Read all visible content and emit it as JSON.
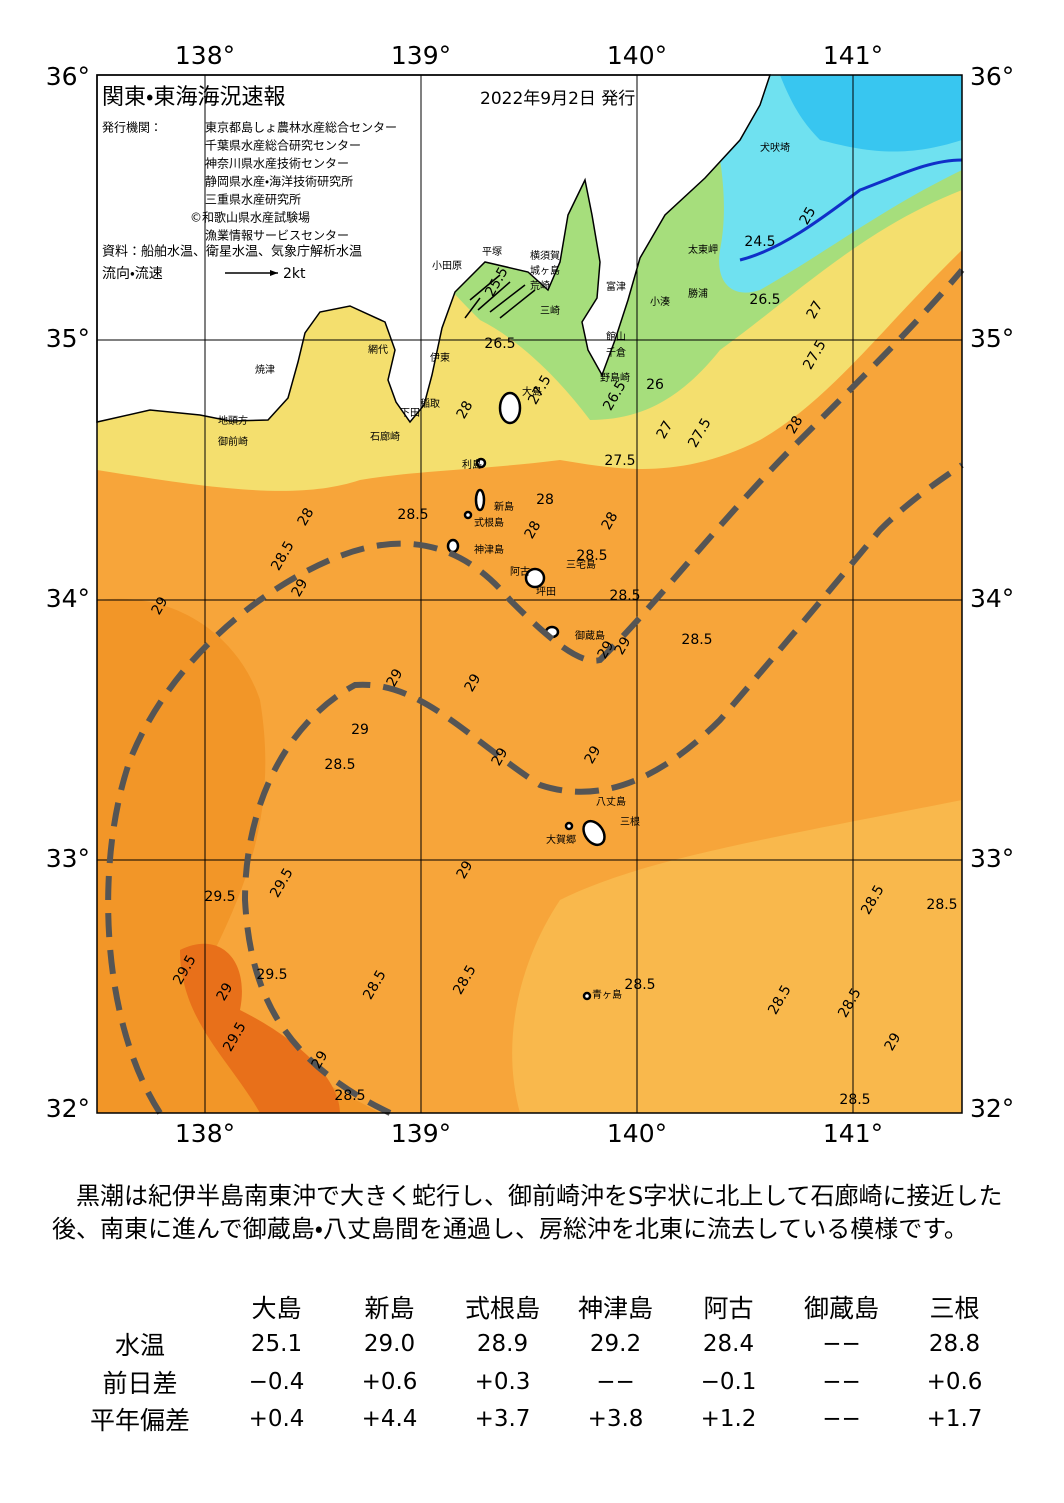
{
  "header": {
    "title": "関東・東海海況速報",
    "date": "2022年9月2日 発行"
  },
  "issuers": {
    "label": "発行機関：",
    "names": [
      "東京都島しょ農林水産総合センター",
      "千葉県水産総合研究センター",
      "神奈川県水産技術センター",
      "静岡県水産・海洋技術研究所",
      "三重県水産研究所",
      "©和歌山県水産試験場",
      "漁業情報サービスセンター"
    ]
  },
  "source": "資料：船舶水温、衛星水温、気象庁解析水温",
  "legend": {
    "label": "流向・流速",
    "scale": "2kt"
  },
  "map": {
    "lon_labels": [
      "138°",
      "139°",
      "140°",
      "141°"
    ],
    "lat_labels": [
      "36°",
      "35°",
      "34°",
      "33°",
      "32°"
    ],
    "places": [
      "犬吠埼",
      "太東岬",
      "小湊",
      "勝浦",
      "富津",
      "館山",
      "千倉",
      "野島崎",
      "横須賀",
      "城ヶ島",
      "荒崎",
      "三崎",
      "平塚",
      "小田原",
      "網代",
      "伊東",
      "焼津",
      "稲取",
      "下田",
      "石廊崎",
      "地頭方",
      "御前崎",
      "大島",
      "利島",
      "新島",
      "式根島",
      "神津島",
      "三宅島",
      "阿古",
      "坪田",
      "御蔵島",
      "八丈島",
      "三根",
      "大賀郷",
      "青ヶ島"
    ],
    "isotherms": [
      "24.5",
      "25",
      "25.5",
      "26.5",
      "27.5",
      "26.5",
      "26",
      "27",
      "27.5",
      "27.5",
      "28",
      "27.5",
      "26.5",
      "27",
      "28",
      "28",
      "28",
      "28",
      "28.5",
      "28",
      "28.5",
      "28.5",
      "29",
      "29",
      "28.5",
      "29",
      "29",
      "28.5",
      "29",
      "29",
      "29",
      "29",
      "29",
      "28.5",
      "29",
      "29.5",
      "29.5",
      "29.5",
      "29",
      "29.5",
      "29.5",
      "29",
      "28.5",
      "28.5",
      "28.5",
      "28.5",
      "28.5",
      "28.5",
      "28.5",
      "28.5",
      "29",
      "28.5"
    ]
  },
  "summary": "黒潮は紀伊半島南東沖で大きく蛇行し、御前崎沖をS字状に北上して石廊崎に接近した後、南東に進んで御蔵島・八丈島間を通過し、房総沖を北東に流去している模様です。",
  "table": {
    "columns": [
      "大島",
      "新島",
      "式根島",
      "神津島",
      "阿古",
      "御蔵島",
      "三根"
    ],
    "rows": [
      {
        "label": "水温",
        "cells": [
          "25.1",
          "29.0",
          "28.9",
          "29.2",
          "28.4",
          "−−",
          "28.8"
        ]
      },
      {
        "label": "前日差",
        "cells": [
          "−0.4",
          "+0.6",
          "+0.3",
          "−−",
          "−0.1",
          "−−",
          "+0.6"
        ]
      },
      {
        "label": "平年偏差",
        "cells": [
          "+0.4",
          "+4.4",
          "+3.7",
          "+3.8",
          "+1.2",
          "−−",
          "+1.7"
        ]
      }
    ]
  }
}
